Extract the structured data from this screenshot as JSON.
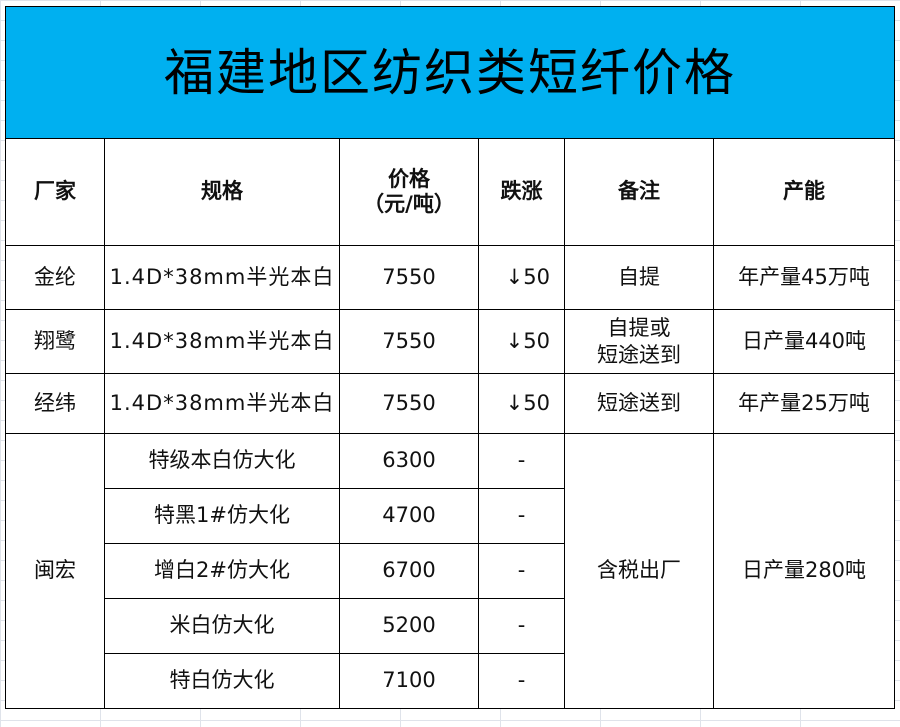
{
  "title": "福建地区纺织类短纤价格",
  "headers": {
    "factory": "厂家",
    "spec": "规格",
    "price_l1": "价格",
    "price_l2": "（元/吨）",
    "change": "跌涨",
    "note": "备注",
    "capacity": "产能"
  },
  "rows": [
    {
      "factory": "金纶",
      "spec": "1.4D*38mm半光本白",
      "price": "7550",
      "change": "↓50",
      "note": "自提",
      "capacity": "年产量45万吨"
    },
    {
      "factory": "翔鹭",
      "spec": "1.4D*38mm半光本白",
      "price": "7550",
      "change": "↓50",
      "note_l1": "自提或",
      "note_l2": "短途送到",
      "capacity": "日产量440吨"
    },
    {
      "factory": "经纬",
      "spec": "1.4D*38mm半光本白",
      "price": "7550",
      "change": "↓50",
      "note": "短途送到",
      "capacity": "年产量25万吨"
    }
  ],
  "minhong": {
    "factory": "闽宏",
    "note": "含税出厂",
    "capacity": "日产量280吨",
    "items": [
      {
        "spec": "特级本白仿大化",
        "price": "6300",
        "change": "-"
      },
      {
        "spec": "特黑1#仿大化",
        "price": "4700",
        "change": "-"
      },
      {
        "spec": "增白2#仿大化",
        "price": "6700",
        "change": "-"
      },
      {
        "spec": "米白仿大化",
        "price": "5200",
        "change": "-"
      },
      {
        "spec": "特白仿大化",
        "price": "7100",
        "change": "-"
      }
    ]
  },
  "colors": {
    "title_bg": "#00b0f0"
  }
}
